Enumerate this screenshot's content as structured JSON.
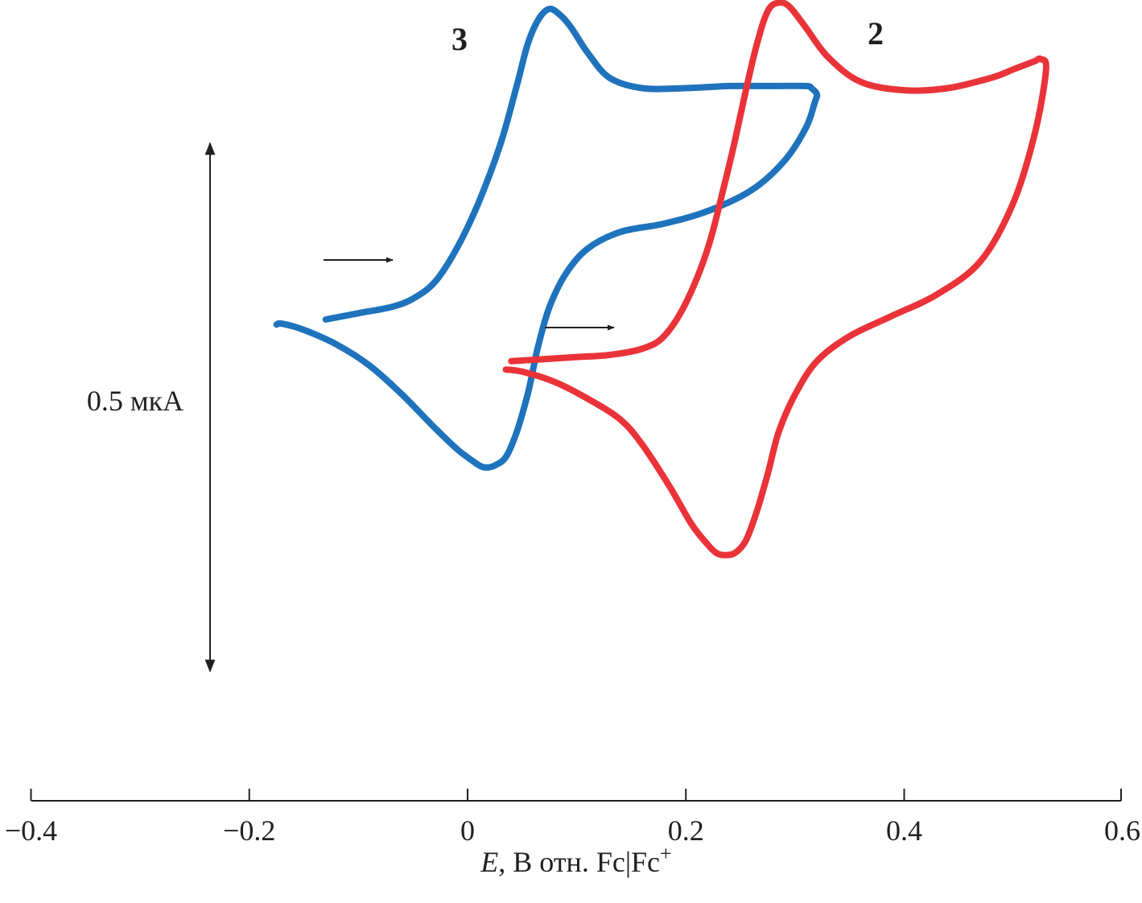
{
  "chart_data": {
    "type": "line",
    "title": "",
    "xlabel": {
      "var": "E",
      "rest": ", В отн. Fc|Fc",
      "sup": "+"
    },
    "ylabel": "",
    "xlim": [
      -0.4,
      0.6
    ],
    "x_ticks": [
      "−0.4",
      "−0.2",
      "0",
      "0.2",
      "0.4",
      "0.6"
    ],
    "x_tick_values": [
      -0.4,
      -0.2,
      0,
      0.2,
      0.4,
      0.6
    ],
    "grid": false,
    "scale_bar": {
      "label": "0.5 мкА",
      "current_uA": 0.5
    },
    "units": {
      "x": "V vs Fc|Fc+",
      "y": "µA"
    },
    "series": [
      {
        "name": "3",
        "color": "#1f73bc",
        "x": [
          -0.13,
          -0.1,
          -0.07,
          -0.05,
          -0.03,
          -0.01,
          0.01,
          0.03,
          0.045,
          0.055,
          0.065,
          0.075,
          0.085,
          0.095,
          0.11,
          0.13,
          0.16,
          0.2,
          0.24,
          0.28,
          0.31,
          0.315,
          0.32,
          0.318,
          0.31,
          0.29,
          0.26,
          0.22,
          0.18,
          0.14,
          0.11,
          0.09,
          0.075,
          0.065,
          0.06,
          0.055,
          0.045,
          0.035,
          0.025,
          0.018,
          0.012,
          0.005,
          -0.01,
          -0.03,
          -0.06,
          -0.09,
          -0.12,
          -0.15,
          -0.17,
          -0.175
        ],
        "y": [
          0.0,
          0.015,
          0.03,
          0.05,
          0.09,
          0.17,
          0.28,
          0.42,
          0.56,
          0.66,
          0.72,
          0.745,
          0.73,
          0.7,
          0.64,
          0.58,
          0.555,
          0.555,
          0.56,
          0.56,
          0.56,
          0.555,
          0.54,
          0.52,
          0.46,
          0.38,
          0.31,
          0.26,
          0.23,
          0.21,
          0.17,
          0.11,
          0.03,
          -0.06,
          -0.12,
          -0.18,
          -0.27,
          -0.33,
          -0.35,
          -0.355,
          -0.352,
          -0.34,
          -0.31,
          -0.26,
          -0.18,
          -0.11,
          -0.06,
          -0.025,
          -0.01,
          -0.012
        ]
      },
      {
        "name": "2",
        "color": "#ea3339",
        "x": [
          0.04,
          0.07,
          0.1,
          0.13,
          0.16,
          0.18,
          0.2,
          0.22,
          0.235,
          0.245,
          0.255,
          0.265,
          0.275,
          0.285,
          0.295,
          0.31,
          0.33,
          0.36,
          0.4,
          0.44,
          0.48,
          0.5,
          0.51,
          0.52,
          0.525,
          0.53,
          0.52,
          0.5,
          0.47,
          0.43,
          0.39,
          0.35,
          0.32,
          0.3,
          0.285,
          0.275,
          0.265,
          0.255,
          0.245,
          0.235,
          0.228,
          0.22,
          0.205,
          0.185,
          0.16,
          0.14,
          0.11,
          0.08,
          0.05,
          0.035
        ],
        "y": [
          -0.1,
          -0.095,
          -0.09,
          -0.085,
          -0.07,
          -0.04,
          0.04,
          0.17,
          0.32,
          0.43,
          0.55,
          0.66,
          0.74,
          0.76,
          0.75,
          0.7,
          0.63,
          0.57,
          0.55,
          0.555,
          0.58,
          0.6,
          0.61,
          0.62,
          0.625,
          0.6,
          0.45,
          0.28,
          0.14,
          0.06,
          0.01,
          -0.04,
          -0.1,
          -0.18,
          -0.27,
          -0.37,
          -0.46,
          -0.53,
          -0.56,
          -0.565,
          -0.56,
          -0.54,
          -0.49,
          -0.4,
          -0.3,
          -0.24,
          -0.19,
          -0.15,
          -0.125,
          -0.12
        ]
      }
    ],
    "annotations": [
      {
        "text": "3",
        "series": "3"
      },
      {
        "text": "2",
        "series": "2"
      }
    ],
    "scan_direction_arrows": [
      {
        "series": "3",
        "direction": "positive"
      },
      {
        "series": "2",
        "direction": "positive"
      }
    ]
  }
}
